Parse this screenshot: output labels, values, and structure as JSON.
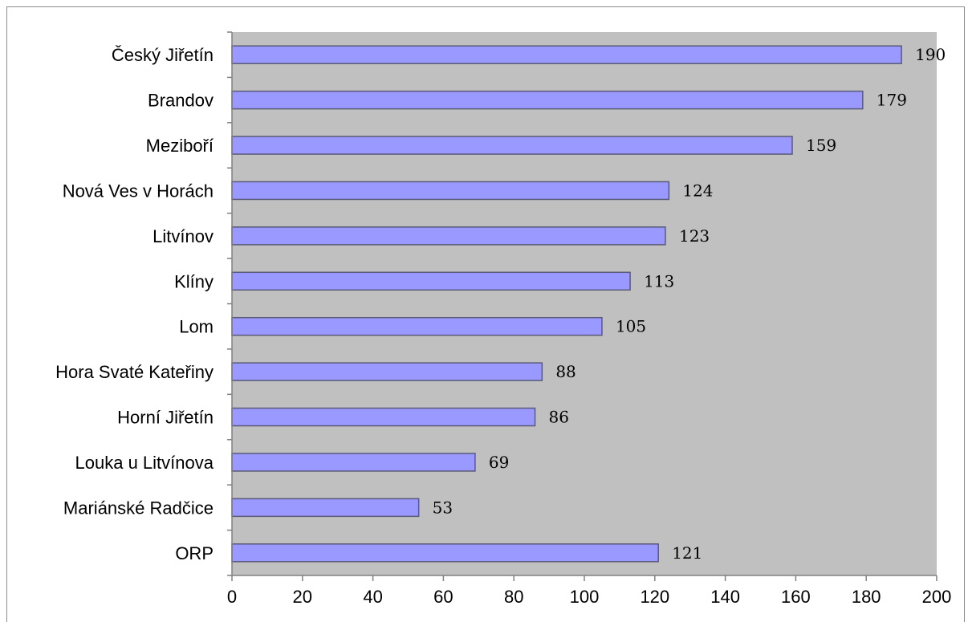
{
  "chart_data": {
    "type": "bar",
    "orientation": "horizontal",
    "title": "",
    "xlabel": "",
    "ylabel": "",
    "categories": [
      "Český Jiřetín",
      "Brandov",
      "Meziboří",
      "Nová Ves v Horách",
      "Litvínov",
      "Klíny",
      "Lom",
      "Hora Svaté Kateřiny",
      "Horní Jiřetín",
      "Louka u Litvínova",
      "Mariánské Radčice",
      "ORP"
    ],
    "values": [
      190,
      179,
      159,
      124,
      123,
      113,
      105,
      88,
      86,
      69,
      53,
      121
    ],
    "value_labels": [
      "190",
      "179",
      "159",
      "124",
      "123",
      "113",
      "105",
      "88",
      "86",
      "69",
      "53",
      "121"
    ],
    "xlim": [
      0,
      200
    ],
    "x_ticks": [
      "0",
      "20",
      "40",
      "60",
      "80",
      "100",
      "120",
      "140",
      "160",
      "180",
      "200"
    ],
    "grid": false,
    "legend": "none",
    "colors": {
      "bar_fill": "#9999ff",
      "bar_stroke": "#5a5a78",
      "plot_background": "#c0c0c0",
      "axis": "#808080"
    }
  }
}
